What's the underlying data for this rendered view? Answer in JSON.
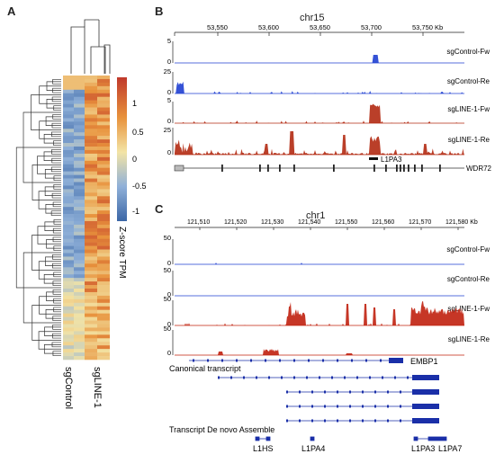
{
  "panels": {
    "a": "A",
    "b": "B",
    "c": "C"
  },
  "heatmap": {
    "columns": [
      "sgControl",
      "sgLINE-1"
    ],
    "colorbar_ticks": [
      "1",
      "0.5",
      "0",
      "-0.5",
      "-1"
    ],
    "colorbar_title": "Z-score TPM",
    "colors": {
      "high": "#c0392b",
      "mid": "#f3e4a5",
      "low": "#3b66a6"
    }
  },
  "panel_b": {
    "chrom": "chr15",
    "axis_ticks": [
      "53,550",
      "53,600",
      "53,650",
      "53,700",
      "53,750 Kb"
    ],
    "tracks": [
      {
        "name": "sgControl-Fw",
        "max": "5",
        "min": "0",
        "color": "#1f3fd1"
      },
      {
        "name": "sgControl-Re",
        "max": "25",
        "min": "0",
        "color": "#1f3fd1"
      },
      {
        "name": "sgLINE-1-Fw",
        "max": "5",
        "min": "0",
        "color": "#b22a12"
      },
      {
        "name": "sgLINE-1-Re",
        "max": "25",
        "min": "0",
        "color": "#b22a12"
      }
    ],
    "feature_label": "L1PA3",
    "gene_label": "WDR72"
  },
  "panel_c": {
    "chrom": "chr1",
    "axis_ticks": [
      "121,510",
      "121,520",
      "121,530",
      "121,540",
      "121,550",
      "121,560",
      "121,570",
      "121,580 Kb"
    ],
    "tracks": [
      {
        "name": "sgControl-Fw",
        "max": "50",
        "min": "0",
        "color": "#1f3fd1"
      },
      {
        "name": "sgControl-Re",
        "max": "50",
        "min": "0",
        "color": "#1f3fd1"
      },
      {
        "name": "sgLINE-1-Fw",
        "max": "50",
        "min": "0",
        "color": "#c0200e"
      },
      {
        "name": "sgLINE-1-Re",
        "max": "50",
        "min": "0",
        "color": "#c0200e"
      }
    ],
    "canonical_label": "Canonical transcript",
    "gene_label": "EMBP1",
    "denovo_label": "Transcript De novo Assemble",
    "repeat_labels": [
      "L1HS",
      "L1PA4",
      "L1PA3",
      "L1PA7"
    ]
  }
}
